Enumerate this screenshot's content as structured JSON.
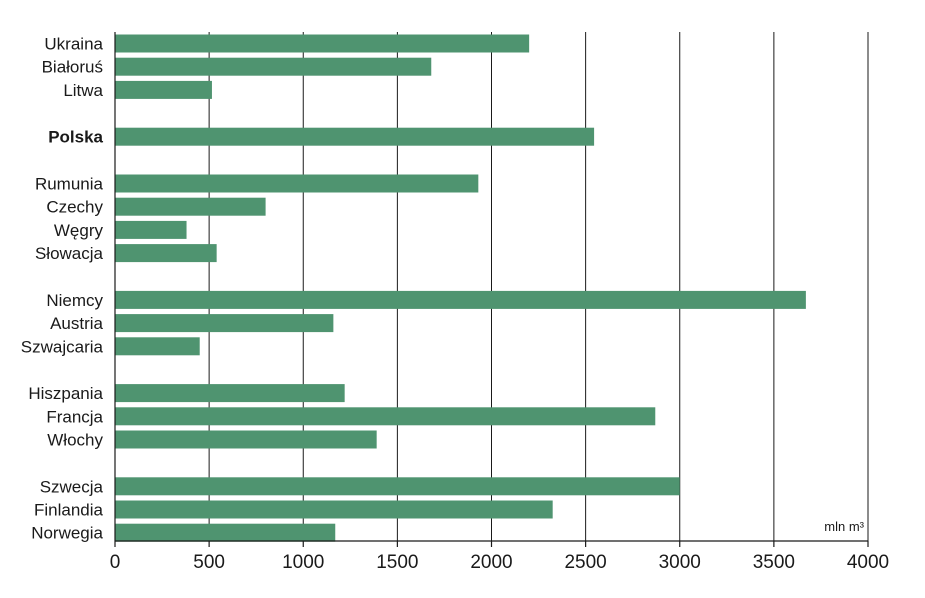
{
  "chart_data": {
    "type": "bar",
    "orientation": "horizontal",
    "unit": "mln m³",
    "xlim": [
      0,
      4000
    ],
    "xticks": [
      0,
      500,
      1000,
      1500,
      2000,
      2500,
      3000,
      3500,
      4000
    ],
    "grid": "vertical",
    "bar_color": "#4f9470",
    "groups": [
      [
        {
          "label": "Ukraina",
          "value": 2200
        },
        {
          "label": "Białoruś",
          "value": 1680
        },
        {
          "label": "Litwa",
          "value": 515
        }
      ],
      [
        {
          "label": "Polska",
          "value": 2545,
          "bold": true
        }
      ],
      [
        {
          "label": "Rumunia",
          "value": 1930
        },
        {
          "label": "Czechy",
          "value": 800
        },
        {
          "label": "Węgry",
          "value": 380
        },
        {
          "label": "Słowacja",
          "value": 540
        }
      ],
      [
        {
          "label": "Niemcy",
          "value": 3670
        },
        {
          "label": "Austria",
          "value": 1160
        },
        {
          "label": "Szwajcaria",
          "value": 450
        }
      ],
      [
        {
          "label": "Hiszpania",
          "value": 1220
        },
        {
          "label": "Francja",
          "value": 2870
        },
        {
          "label": "Włochy",
          "value": 1390
        }
      ],
      [
        {
          "label": "Szwecja",
          "value": 3000
        },
        {
          "label": "Finlandia",
          "value": 2325
        },
        {
          "label": "Norwegia",
          "value": 1170
        }
      ]
    ]
  }
}
